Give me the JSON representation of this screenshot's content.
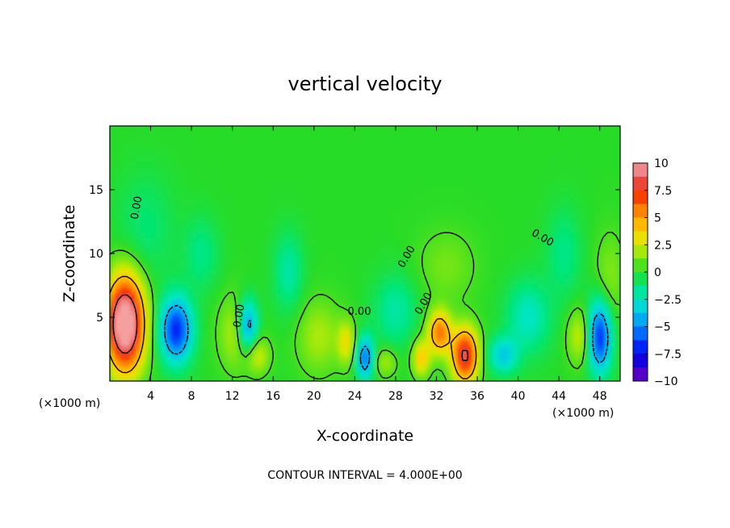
{
  "chart_data": {
    "type": "heatmap",
    "title": "vertical velocity",
    "xlabel": "X-coordinate",
    "ylabel": "Z-coordinate",
    "x_unit": "(×1000 m)",
    "x_unit_right": "(×1000 m)",
    "xlim": [
      0,
      50
    ],
    "ylim": [
      0,
      20
    ],
    "x_ticks": [
      "4",
      "8",
      "12",
      "16",
      "20",
      "24",
      "28",
      "32",
      "36",
      "40",
      "44",
      "48"
    ],
    "x_tick_values": [
      4,
      8,
      12,
      16,
      20,
      24,
      28,
      32,
      36,
      40,
      44,
      48
    ],
    "y_ticks": [
      "5",
      "10",
      "15"
    ],
    "y_tick_values": [
      5,
      10,
      15
    ],
    "colorbar": {
      "range": [
        -10,
        10
      ],
      "ticks": [
        "10",
        "7.5",
        "5",
        "2.5",
        "0",
        "−2.5",
        "−5",
        "−7.5",
        "−10"
      ],
      "tick_values": [
        10,
        7.5,
        5,
        2.5,
        0,
        -2.5,
        -5,
        -7.5,
        -10
      ]
    },
    "contour_labels": [
      "0.00",
      "0.00",
      "0.00",
      "0.00",
      "0.00",
      "0.00"
    ],
    "contour_interval_text": "CONTOUR INTERVAL = 4.000E+00",
    "features": [
      {
        "x": 1.5,
        "z": 4.5,
        "w": 12,
        "sx": 1.3,
        "sz": 2.6
      },
      {
        "x": 6.5,
        "z": 4.0,
        "w": -7,
        "sx": 1.1,
        "sz": 1.8
      },
      {
        "x": 13.5,
        "z": 4.3,
        "w": -6,
        "sx": 0.7,
        "sz": 1.5
      },
      {
        "x": 12.5,
        "z": 3.8,
        "w": 2.5,
        "sx": 1.2,
        "sz": 2.0
      },
      {
        "x": 25.0,
        "z": 1.8,
        "w": -5.5,
        "sx": 0.6,
        "sz": 1.2
      },
      {
        "x": 23.2,
        "z": 3.0,
        "w": 3,
        "sx": 0.6,
        "sz": 1.2
      },
      {
        "x": 20.5,
        "z": 3.5,
        "w": 2,
        "sx": 1.5,
        "sz": 2.0
      },
      {
        "x": 32.3,
        "z": 3.8,
        "w": 6,
        "sx": 0.8,
        "sz": 1.2
      },
      {
        "x": 34.8,
        "z": 2.0,
        "w": 8.5,
        "sx": 0.9,
        "sz": 1.5
      },
      {
        "x": 30.5,
        "z": 1.8,
        "w": 4,
        "sx": 0.6,
        "sz": 1.0
      },
      {
        "x": 38.5,
        "z": 2.0,
        "w": -3.5,
        "sx": 1.0,
        "sz": 1.0
      },
      {
        "x": 48.0,
        "z": 3.5,
        "w": -7,
        "sx": 0.8,
        "sz": 2.0
      },
      {
        "x": 46.0,
        "z": 3.5,
        "w": 2.5,
        "sx": 0.8,
        "sz": 1.5
      },
      {
        "x": 17.5,
        "z": 8.5,
        "w": -2,
        "sx": 1.0,
        "sz": 2.2
      },
      {
        "x": 9.0,
        "z": 10.0,
        "w": -1.5,
        "sx": 1.2,
        "sz": 2.0
      },
      {
        "x": 3.5,
        "z": 12.0,
        "w": -1.2,
        "sx": 2.0,
        "sz": 3.0
      },
      {
        "x": 28.0,
        "z": 5.5,
        "w": -2,
        "sx": 1.5,
        "sz": 2.0
      },
      {
        "x": 41.0,
        "z": 5.0,
        "w": -2.5,
        "sx": 1.5,
        "sz": 2.0
      },
      {
        "x": 44.5,
        "z": 10.0,
        "w": -1.5,
        "sx": 1.2,
        "sz": 2.5
      },
      {
        "x": 33.0,
        "z": 9.0,
        "w": 1.2,
        "sx": 2.0,
        "sz": 2.0
      },
      {
        "x": 49.0,
        "z": 8.0,
        "w": 1.5,
        "sx": 1.0,
        "sz": 2.5
      },
      {
        "x": 27.0,
        "z": 1.5,
        "w": 2,
        "sx": 0.8,
        "sz": 0.8
      },
      {
        "x": 14.5,
        "z": 2.0,
        "w": 2.5,
        "sx": 0.8,
        "sz": 1.0
      }
    ]
  }
}
